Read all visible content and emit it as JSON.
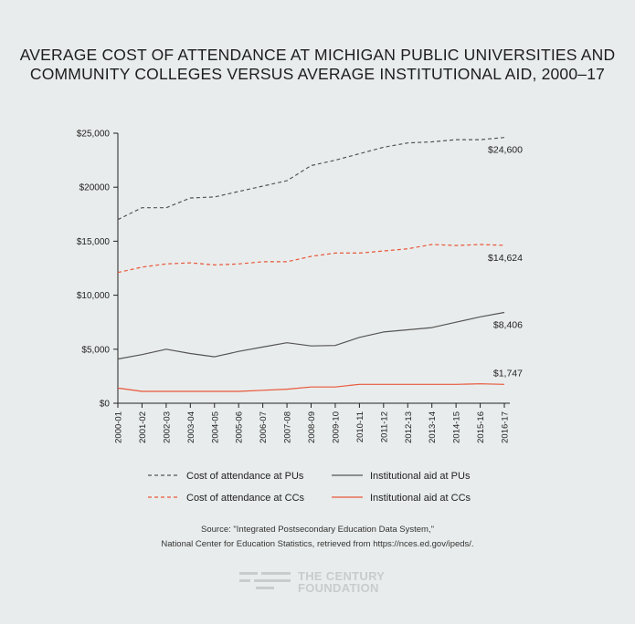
{
  "title": {
    "line1": "AVERAGE COST OF ATTENDANCE AT MICHIGAN PUBLIC UNIVERSITIES AND",
    "line2": "COMMUNITY COLLEGES VERSUS AVERAGE INSTITUTIONAL AID, 2000–17"
  },
  "source": {
    "line1": "Source: \"Integrated Postsecondary Education Data System,\"",
    "line2": "National Center for Education Statistics, retrieved from https://nces.ed.gov/ipeds/."
  },
  "logo": {
    "line1": "THE CENTURY",
    "line2": "FOUNDATION"
  },
  "colors": {
    "pu": "#555555",
    "cc": "#e8573a",
    "axis": "#222222"
  },
  "chart_data": {
    "type": "line",
    "title": "AVERAGE COST OF ATTENDANCE AT MICHIGAN PUBLIC UNIVERSITIES AND COMMUNITY COLLEGES VERSUS AVERAGE INSTITUTIONAL AID, 2000–17",
    "xlabel": "",
    "ylabel": "",
    "ylim": [
      0,
      25000
    ],
    "yticks": [
      {
        "value": 0,
        "label": "$0"
      },
      {
        "value": 5000,
        "label": "$5,000"
      },
      {
        "value": 10000,
        "label": "$10,000"
      },
      {
        "value": 15000,
        "label": "$15,000"
      },
      {
        "value": 20000,
        "label": "$20000"
      },
      {
        "value": 25000,
        "label": "$25,000"
      }
    ],
    "categories": [
      "2000-01",
      "2001-02",
      "2002-03",
      "2003-04",
      "2004-05",
      "2005-06",
      "2006-07",
      "2007-08",
      "2008-09",
      "2009-10",
      "2010-11",
      "2011-12",
      "2012-13",
      "2013-14",
      "2014-15",
      "2015-16",
      "2016-17"
    ],
    "legend_position": "bottom",
    "series": [
      {
        "name": "Cost of attendance at PUs",
        "color": "#555555",
        "dash": true,
        "end_label": "$24,600",
        "values": [
          17000,
          18100,
          18100,
          19000,
          19100,
          19600,
          20100,
          20600,
          22000,
          22500,
          23100,
          23700,
          24100,
          24200,
          24400,
          24400,
          24600
        ]
      },
      {
        "name": "Cost of attendance at CCs",
        "color": "#e8573a",
        "dash": true,
        "end_label": "$14,624",
        "values": [
          12100,
          12600,
          12900,
          13000,
          12800,
          12900,
          13100,
          13100,
          13600,
          13900,
          13900,
          14100,
          14300,
          14700,
          14600,
          14700,
          14624
        ]
      },
      {
        "name": "Institutional aid at PUs",
        "color": "#555555",
        "dash": false,
        "end_label": "$8,406",
        "values": [
          4100,
          4500,
          5000,
          4600,
          4300,
          4800,
          5200,
          5600,
          5300,
          5350,
          6100,
          6600,
          6800,
          7000,
          7500,
          8000,
          8406
        ]
      },
      {
        "name": "Institutional aid at CCs",
        "color": "#e8573a",
        "dash": false,
        "end_label": "$1,747",
        "values": [
          1400,
          1100,
          1100,
          1100,
          1100,
          1100,
          1200,
          1300,
          1500,
          1500,
          1750,
          1750,
          1750,
          1750,
          1750,
          1800,
          1747
        ]
      }
    ]
  }
}
